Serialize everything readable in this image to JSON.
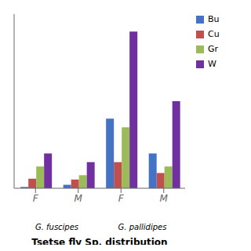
{
  "chart_data": {
    "type": "bar",
    "title": "Tsetse fly Sp. distribution",
    "categories": [
      "F",
      "M",
      "F",
      "M"
    ],
    "series": [
      {
        "name": "Bu",
        "color": "#4472C4",
        "values": [
          0.3,
          0.8,
          16,
          8
        ]
      },
      {
        "name": "Cu",
        "color": "#C0504D",
        "values": [
          2.2,
          2.0,
          6,
          3.5
        ]
      },
      {
        "name": "Gr",
        "color": "#9BBB59",
        "values": [
          5.0,
          3.0,
          14,
          5
        ]
      },
      {
        "name": "W",
        "color": "#7030A0",
        "values": [
          8.0,
          6.0,
          36,
          20
        ]
      }
    ],
    "annotations": [
      "G. fuscipes",
      "G. pallidipes"
    ],
    "ylim": [
      0,
      40
    ],
    "tick_labels": "x",
    "grid": false,
    "legend": "right"
  }
}
